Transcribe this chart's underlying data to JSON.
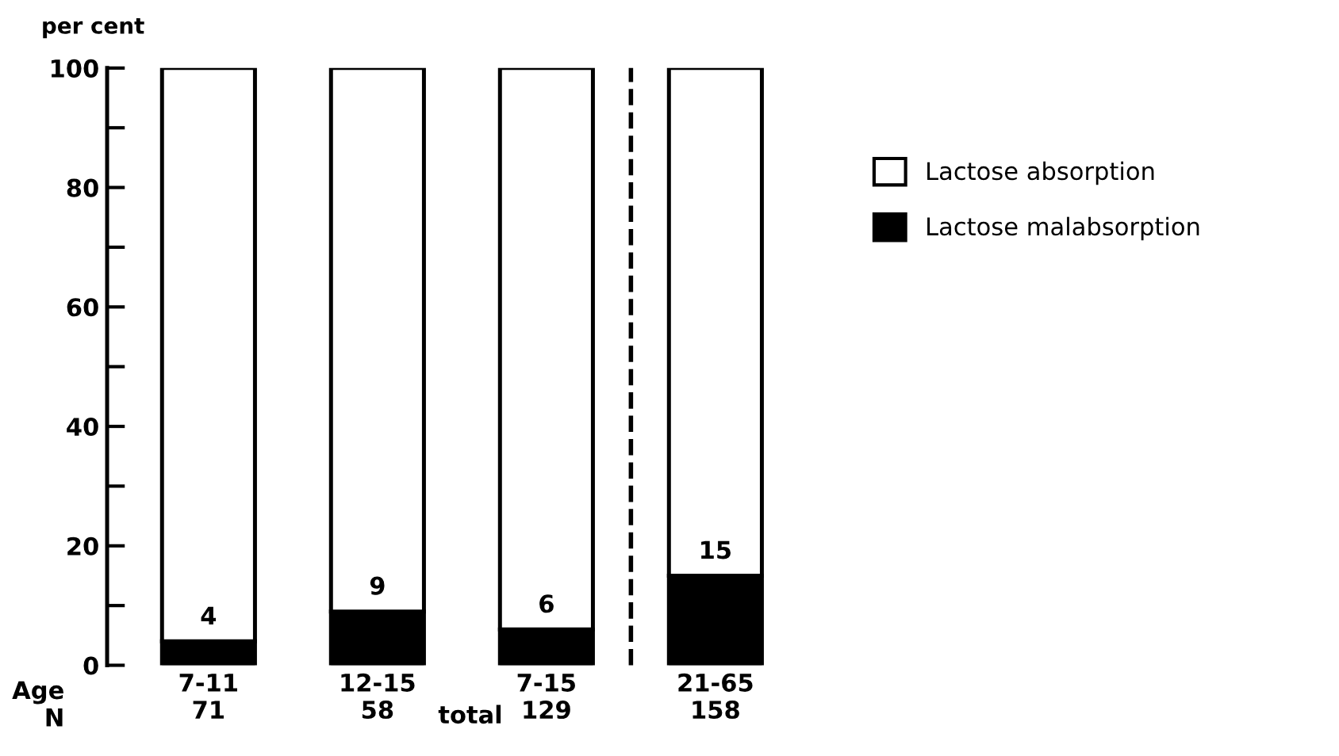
{
  "chart_data": {
    "type": "bar",
    "stacked": true,
    "ylabel": "per cent",
    "categories": [
      "7-11\n71",
      "12-15\n58",
      "7-15\n129",
      "21-65\n158"
    ],
    "series": [
      {
        "name": "Lactose malabsorption",
        "color": "#000000",
        "values": [
          4,
          9,
          6,
          15
        ],
        "value_labels": [
          "4",
          "9",
          "6",
          "15"
        ]
      },
      {
        "name": "Lactose absorption",
        "color": "#ffffff",
        "values": [
          96,
          91,
          94,
          85
        ]
      }
    ],
    "ylim": [
      0,
      100
    ],
    "yticks": [
      0,
      {
        "value": 10,
        "label": null
      },
      20,
      {
        "value": 30,
        "label": null
      },
      40,
      {
        "value": 50,
        "label": null
      },
      60,
      {
        "value": 70,
        "label": null
      },
      80,
      {
        "value": 90,
        "label": null
      },
      100
    ],
    "annotations": [
      "Age\nN",
      "total"
    ],
    "legend": "right",
    "grid": false
  }
}
